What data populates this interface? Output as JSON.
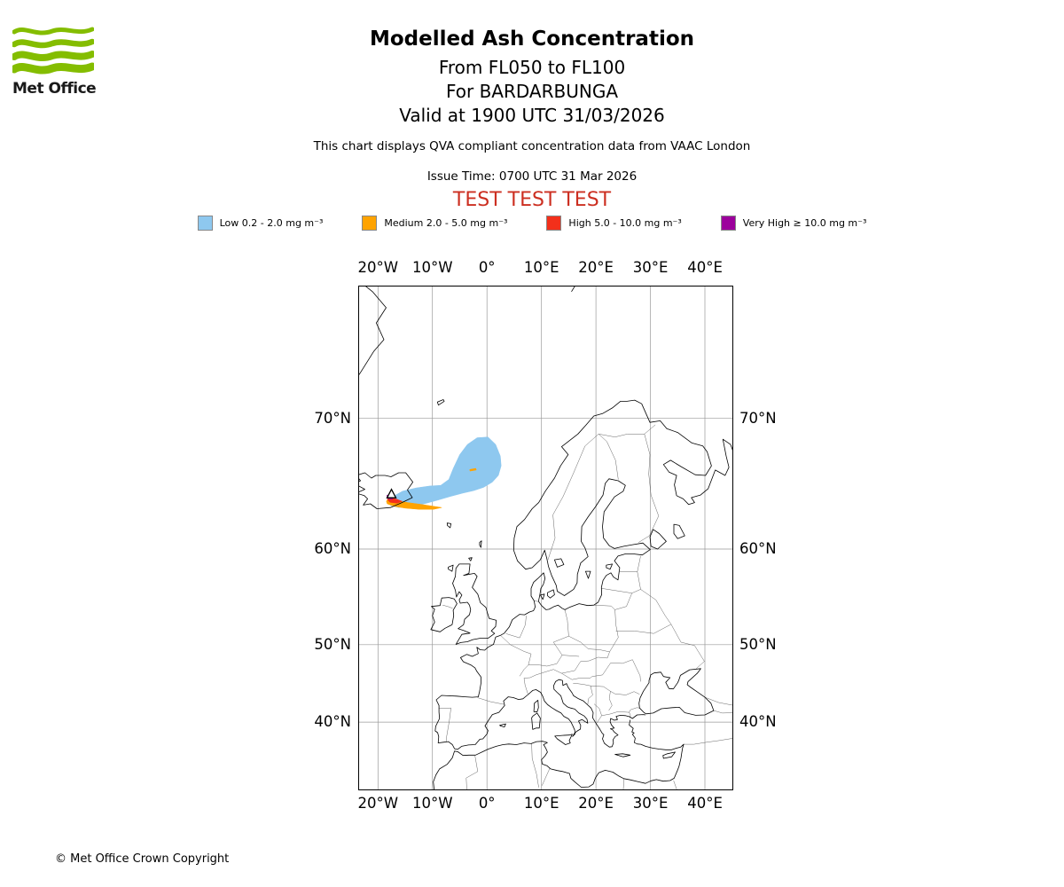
{
  "logo": {
    "text": "Met Office",
    "wave_color": "#84bd00"
  },
  "header": {
    "title": "Modelled Ash Concentration",
    "flight_levels": "From FL050 to FL100",
    "volcano_line": "For BARDARBUNGA",
    "valid_line": "Valid at 1900 UTC 31/03/2026",
    "description": "This chart displays QVA compliant concentration data from VAAC London",
    "issue_time": "Issue Time: 0700 UTC 31 Mar 2026",
    "test_banner": "TEST TEST TEST",
    "test_color": "#cc2f21"
  },
  "legend": {
    "items": [
      {
        "id": "low",
        "text": "Low 0.2 - 2.0 mg m⁻³",
        "color": "#8ec8ef"
      },
      {
        "id": "medium",
        "text": "Medium 2.0 - 5.0 mg m⁻³",
        "color": "#ffa300"
      },
      {
        "id": "high",
        "text": "High 5.0 - 10.0 mg m⁻³",
        "color": "#f3301b"
      },
      {
        "id": "very-high",
        "text": "Very High ≥ 10.0 mg m⁻³",
        "color": "#9c009c"
      }
    ]
  },
  "map": {
    "x_ticks": [
      {
        "label": "20°W",
        "lon": -20
      },
      {
        "label": "10°W",
        "lon": -10
      },
      {
        "label": "0°",
        "lon": 0
      },
      {
        "label": "10°E",
        "lon": 10
      },
      {
        "label": "20°E",
        "lon": 20
      },
      {
        "label": "30°E",
        "lon": 30
      },
      {
        "label": "40°E",
        "lon": 40
      }
    ],
    "y_ticks": [
      {
        "label": "70°N",
        "lat": 70
      },
      {
        "label": "60°N",
        "lat": 60
      },
      {
        "label": "50°N",
        "lat": 50
      },
      {
        "label": "40°N",
        "lat": 40
      }
    ],
    "grid": {
      "lons": [
        -20,
        -10,
        0,
        10,
        20,
        30,
        40
      ],
      "lats": [
        40,
        50,
        60,
        70
      ]
    },
    "volcano": {
      "name": "BARDARBUNGA",
      "lon": -17.53,
      "lat": 64.63
    },
    "plumes": [
      {
        "level": "low",
        "color": "#8ec8ef",
        "polygons": [
          [
            [
              -17.8,
              64.35
            ],
            [
              -15.5,
              64.9
            ],
            [
              -13.0,
              65.15
            ],
            [
              -10.5,
              65.3
            ],
            [
              -8.5,
              65.35
            ],
            [
              -7.0,
              65.8
            ],
            [
              -6.2,
              66.6
            ],
            [
              -5.0,
              67.6
            ],
            [
              -3.6,
              68.3
            ],
            [
              -1.8,
              68.75
            ],
            [
              0.2,
              68.8
            ],
            [
              1.6,
              68.3
            ],
            [
              2.45,
              67.5
            ],
            [
              2.6,
              66.8
            ],
            [
              2.1,
              66.1
            ],
            [
              1.0,
              65.6
            ],
            [
              -0.6,
              65.2
            ],
            [
              -2.4,
              64.95
            ],
            [
              -4.4,
              64.75
            ],
            [
              -6.6,
              64.5
            ],
            [
              -9.0,
              64.2
            ],
            [
              -11.5,
              63.9
            ],
            [
              -14.0,
              63.7
            ],
            [
              -16.2,
              63.6
            ],
            [
              -17.6,
              63.75
            ],
            [
              -18.3,
              64.0
            ]
          ]
        ]
      },
      {
        "level": "medium",
        "color": "#ffa300",
        "polygons": [
          [
            [
              -18.2,
              64.3
            ],
            [
              -16.5,
              64.15
            ],
            [
              -14.5,
              64.0
            ],
            [
              -12.0,
              63.85
            ],
            [
              -9.8,
              63.7
            ],
            [
              -8.3,
              63.6
            ],
            [
              -9.8,
              63.45
            ],
            [
              -12.5,
              63.45
            ],
            [
              -15.0,
              63.55
            ],
            [
              -17.0,
              63.7
            ],
            [
              -18.3,
              63.9
            ],
            [
              -18.45,
              64.1
            ]
          ],
          [
            [
              -3.1,
              66.42
            ],
            [
              -1.95,
              66.5
            ],
            [
              -2.05,
              66.62
            ],
            [
              -3.15,
              66.54
            ]
          ]
        ]
      },
      {
        "level": "high",
        "color": "#f3301b",
        "polygons": [
          [
            [
              -18.0,
              64.42
            ],
            [
              -16.6,
              64.28
            ],
            [
              -15.55,
              64.1
            ],
            [
              -16.5,
              63.95
            ],
            [
              -17.8,
              64.02
            ],
            [
              -18.2,
              64.2
            ]
          ]
        ]
      },
      {
        "level": "very-high",
        "color": "#9c009c",
        "polygons": [
          [
            [
              -18.35,
              64.6
            ],
            [
              -17.45,
              64.55
            ],
            [
              -17.3,
              64.28
            ],
            [
              -18.3,
              64.32
            ]
          ]
        ]
      }
    ]
  },
  "footer": {
    "copyright": "© Met Office Crown Copyright"
  }
}
